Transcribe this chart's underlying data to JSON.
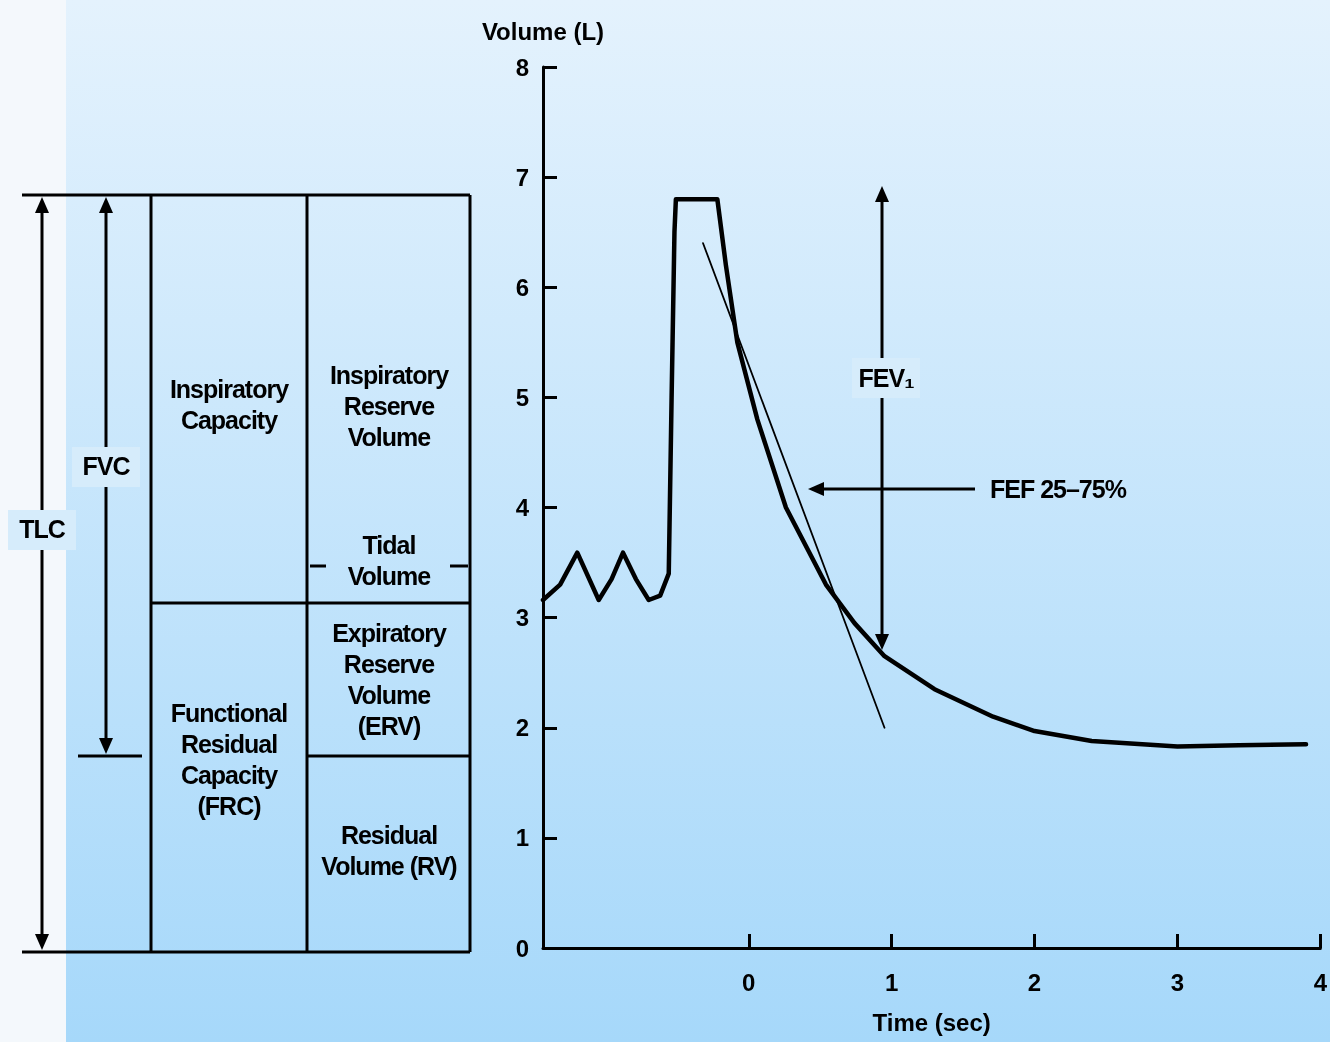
{
  "chart_data": {
    "type": "line",
    "xlabel": "Time (sec)",
    "ylabel": "Volume (L)",
    "xlim": [
      -1.44,
      4
    ],
    "xticks": [
      0,
      1,
      2,
      3,
      4
    ],
    "ylim": [
      0,
      8
    ],
    "yticks": [
      0,
      1,
      2,
      3,
      4,
      5,
      6,
      7,
      8
    ],
    "grid": false,
    "marker": "none",
    "line_style": "solid",
    "series": [
      {
        "color": "#000000",
        "x": [
          -1.44,
          -1.32,
          -1.2,
          -1.05,
          -0.96,
          -0.88,
          -0.79,
          -0.7,
          -0.62,
          -0.56,
          -0.54,
          -0.52,
          -0.51,
          -0.22,
          -0.16,
          -0.08,
          0.06,
          0.26,
          0.54,
          0.74,
          0.95,
          1.3,
          1.71,
          2.0,
          2.4,
          3.0,
          3.43,
          3.9
        ],
        "values": [
          3.16,
          3.3,
          3.59,
          3.16,
          3.35,
          3.59,
          3.35,
          3.16,
          3.2,
          3.4,
          5.0,
          6.5,
          6.8,
          6.8,
          6.2,
          5.5,
          4.8,
          4.0,
          3.3,
          2.95,
          2.65,
          2.35,
          2.1,
          1.97,
          1.88,
          1.83,
          1.84,
          1.85
        ]
      },
      {
        "color": "#000000",
        "x": [
          -0.32,
          0.95
        ],
        "values": [
          6.4,
          2.0
        ]
      }
    ],
    "annotations": [
      "FEV₁",
      "FEF 25–75%",
      "TLC",
      "FVC",
      "Inspiratory Capacity",
      "Inspiratory Reserve Volume",
      "Tidal Volume",
      "Functional Residual Capacity (FRC)",
      "Expiratory Reserve Volume (ERV)",
      "Residual Volume (RV)"
    ]
  }
}
